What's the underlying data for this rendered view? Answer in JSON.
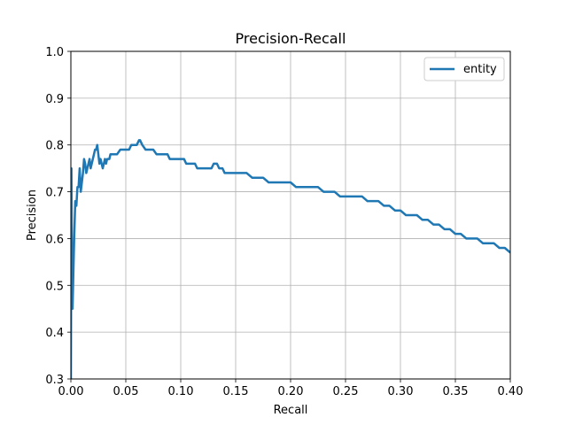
{
  "chart_data": {
    "type": "line",
    "title": "Precision-Recall",
    "xlabel": "Recall",
    "ylabel": "Precision",
    "xlim": [
      0.0,
      0.4
    ],
    "ylim": [
      0.3,
      1.0
    ],
    "xticks": [
      "0.00",
      "0.05",
      "0.10",
      "0.15",
      "0.20",
      "0.25",
      "0.30",
      "0.35",
      "0.40"
    ],
    "yticks": [
      "0.3",
      "0.4",
      "0.5",
      "0.6",
      "0.7",
      "0.8",
      "0.9",
      "1.0"
    ],
    "grid": true,
    "legend": "top-right",
    "series": [
      {
        "name": "entity",
        "color": "#1f77b4",
        "x": [
          0.0,
          0.0005,
          0.001,
          0.0015,
          0.002,
          0.003,
          0.004,
          0.005,
          0.006,
          0.007,
          0.008,
          0.009,
          0.01,
          0.011,
          0.012,
          0.013,
          0.014,
          0.015,
          0.016,
          0.017,
          0.018,
          0.019,
          0.02,
          0.021,
          0.022,
          0.023,
          0.024,
          0.025,
          0.026,
          0.027,
          0.028,
          0.029,
          0.03,
          0.031,
          0.032,
          0.033,
          0.034,
          0.035,
          0.036,
          0.037,
          0.038,
          0.04,
          0.042,
          0.045,
          0.048,
          0.05,
          0.053,
          0.055,
          0.058,
          0.06,
          0.062,
          0.063,
          0.065,
          0.068,
          0.07,
          0.073,
          0.075,
          0.078,
          0.08,
          0.083,
          0.085,
          0.088,
          0.09,
          0.093,
          0.095,
          0.098,
          0.1,
          0.103,
          0.105,
          0.108,
          0.11,
          0.113,
          0.115,
          0.118,
          0.12,
          0.123,
          0.125,
          0.128,
          0.13,
          0.133,
          0.135,
          0.138,
          0.14,
          0.143,
          0.145,
          0.15,
          0.155,
          0.16,
          0.165,
          0.17,
          0.175,
          0.18,
          0.185,
          0.19,
          0.195,
          0.2,
          0.205,
          0.21,
          0.215,
          0.22,
          0.225,
          0.23,
          0.235,
          0.24,
          0.245,
          0.25,
          0.255,
          0.26,
          0.265,
          0.27,
          0.275,
          0.28,
          0.285,
          0.29,
          0.295,
          0.3,
          0.305,
          0.31,
          0.315,
          0.32,
          0.325,
          0.33,
          0.335,
          0.34,
          0.345,
          0.35,
          0.355,
          0.36,
          0.365,
          0.37,
          0.375,
          0.38,
          0.385,
          0.39,
          0.395,
          0.4
        ],
        "y": [
          0.3,
          0.75,
          0.55,
          0.45,
          0.5,
          0.6,
          0.68,
          0.67,
          0.71,
          0.71,
          0.75,
          0.7,
          0.72,
          0.74,
          0.77,
          0.76,
          0.74,
          0.75,
          0.76,
          0.77,
          0.75,
          0.76,
          0.77,
          0.78,
          0.79,
          0.79,
          0.8,
          0.78,
          0.76,
          0.77,
          0.76,
          0.75,
          0.76,
          0.77,
          0.76,
          0.77,
          0.77,
          0.77,
          0.78,
          0.78,
          0.78,
          0.78,
          0.78,
          0.79,
          0.79,
          0.79,
          0.79,
          0.8,
          0.8,
          0.8,
          0.81,
          0.81,
          0.8,
          0.79,
          0.79,
          0.79,
          0.79,
          0.78,
          0.78,
          0.78,
          0.78,
          0.78,
          0.77,
          0.77,
          0.77,
          0.77,
          0.77,
          0.77,
          0.76,
          0.76,
          0.76,
          0.76,
          0.75,
          0.75,
          0.75,
          0.75,
          0.75,
          0.75,
          0.76,
          0.76,
          0.75,
          0.75,
          0.74,
          0.74,
          0.74,
          0.74,
          0.74,
          0.74,
          0.73,
          0.73,
          0.73,
          0.72,
          0.72,
          0.72,
          0.72,
          0.72,
          0.71,
          0.71,
          0.71,
          0.71,
          0.71,
          0.7,
          0.7,
          0.7,
          0.69,
          0.69,
          0.69,
          0.69,
          0.69,
          0.68,
          0.68,
          0.68,
          0.67,
          0.67,
          0.66,
          0.66,
          0.65,
          0.65,
          0.65,
          0.64,
          0.64,
          0.63,
          0.63,
          0.62,
          0.62,
          0.61,
          0.61,
          0.6,
          0.6,
          0.6,
          0.59,
          0.59,
          0.59,
          0.58,
          0.58,
          0.57
        ]
      }
    ]
  }
}
